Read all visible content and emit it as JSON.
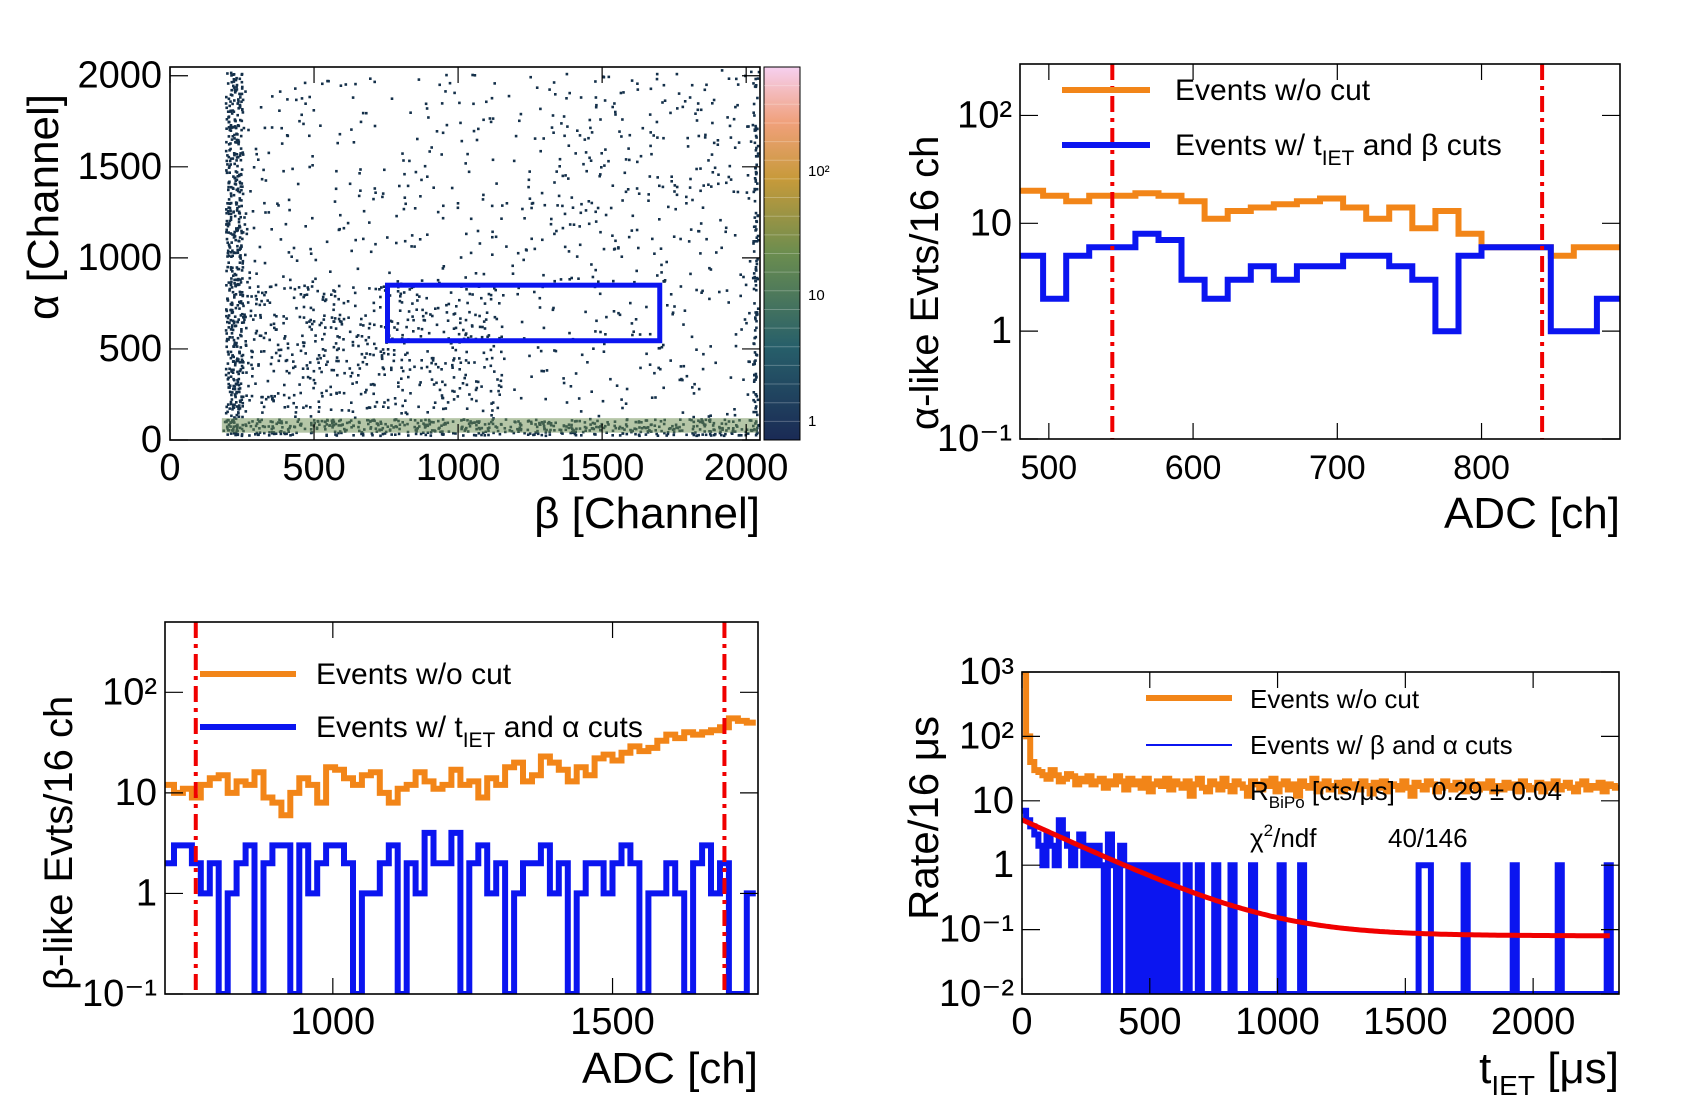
{
  "colors": {
    "orange": "#f28518",
    "blue": "#0b15f0",
    "red": "#f00000",
    "scatter": "#14304a"
  },
  "chart_data": [
    {
      "id": "p1",
      "type": "heatmap",
      "xlabel": "β [Channel]",
      "ylabel": "α [Channel]",
      "xlim": [
        0,
        2048
      ],
      "ylim": [
        0,
        2048
      ],
      "xticks": [
        0,
        500,
        1000,
        1500,
        2000
      ],
      "yticks": [
        0,
        500,
        1000,
        1500,
        2000
      ],
      "colorbar_ticks": [
        "1",
        "10",
        "10²"
      ],
      "selection_box": {
        "x": [
          755,
          1700
        ],
        "y": [
          545,
          850
        ]
      }
    },
    {
      "id": "p2",
      "type": "line",
      "xlabel": "ADC [ch]",
      "ylabel": "α-like Evts/16 ch",
      "xlim": [
        480,
        896
      ],
      "ylim": [
        0.1,
        300
      ],
      "yscale": "log",
      "xticks": [
        500,
        600,
        700,
        800
      ],
      "yticks": [
        0.1,
        1,
        10,
        100
      ],
      "ytick_labels": [
        "10⁻¹",
        "1",
        "10",
        "10²"
      ],
      "cut_lines": [
        544,
        842
      ],
      "legend": [
        {
          "label": "Events w/o cut",
          "color": "#f28518"
        },
        {
          "label_pre": "Events w/ t",
          "label_sub": "IET",
          "label_post": " and β cuts",
          "color": "#0b15f0"
        }
      ],
      "bin_edges": [
        480,
        496,
        512,
        528,
        544,
        560,
        576,
        592,
        608,
        624,
        640,
        656,
        672,
        688,
        704,
        720,
        736,
        752,
        768,
        784,
        800,
        816,
        832,
        848,
        864,
        880,
        896
      ],
      "series": [
        {
          "name": "Events w/o cut",
          "values": [
            20,
            18,
            16,
            18,
            18,
            19,
            18,
            16,
            11,
            13,
            14,
            15,
            16,
            17,
            14,
            11,
            14,
            9,
            13,
            8,
            6,
            6,
            6,
            5,
            6,
            6
          ]
        },
        {
          "name": "Events w/ tIET and β cuts",
          "values": [
            5,
            2,
            5,
            6,
            6,
            8,
            7,
            3,
            2,
            3,
            4,
            3,
            4,
            4,
            5,
            5,
            4,
            3,
            1,
            5,
            6,
            6,
            6,
            1,
            1,
            2
          ]
        }
      ]
    },
    {
      "id": "p3",
      "type": "line",
      "xlabel": "ADC [ch]",
      "ylabel": "β-like Evts/16 ch",
      "xlim": [
        700,
        1760
      ],
      "ylim": [
        0.1,
        500
      ],
      "yscale": "log",
      "xticks": [
        1000,
        1500
      ],
      "yticks": [
        0.1,
        1,
        10,
        100
      ],
      "ytick_labels": [
        "10⁻¹",
        "1",
        "10",
        "10²"
      ],
      "cut_lines": [
        755,
        1700
      ],
      "legend": [
        {
          "label": "Events w/o cut",
          "color": "#f28518"
        },
        {
          "label_pre": "Events w/ t",
          "label_sub": "IET",
          "label_post": " and α cuts",
          "color": "#0b15f0"
        }
      ],
      "bin_edges": [
        700,
        716,
        732,
        748,
        764,
        780,
        796,
        812,
        828,
        844,
        860,
        876,
        892,
        908,
        924,
        940,
        956,
        972,
        988,
        1004,
        1020,
        1036,
        1052,
        1068,
        1084,
        1100,
        1116,
        1132,
        1148,
        1164,
        1180,
        1196,
        1212,
        1228,
        1244,
        1260,
        1276,
        1292,
        1308,
        1324,
        1340,
        1356,
        1372,
        1388,
        1404,
        1420,
        1436,
        1452,
        1468,
        1484,
        1500,
        1516,
        1532,
        1548,
        1564,
        1580,
        1596,
        1612,
        1628,
        1644,
        1660,
        1676,
        1692,
        1708,
        1724,
        1740,
        1756
      ],
      "series": [
        {
          "name": "Events w/o cut",
          "values": [
            12,
            10,
            11,
            9,
            12,
            14,
            15,
            10,
            13,
            12,
            16,
            9,
            8,
            6,
            10,
            14,
            12,
            8,
            18,
            17,
            14,
            12,
            15,
            16,
            10,
            8,
            11,
            12,
            16,
            13,
            11,
            12,
            17,
            12,
            13,
            9,
            14,
            12,
            18,
            20,
            13,
            15,
            23,
            20,
            17,
            13,
            18,
            15,
            22,
            24,
            21,
            25,
            29,
            26,
            28,
            33,
            38,
            35,
            40,
            38,
            40,
            42,
            45,
            55,
            52,
            50
          ]
        },
        {
          "name": "Events w/ tIET and α cuts",
          "values": [
            2,
            3,
            3,
            2,
            1,
            2,
            0.1,
            1,
            2,
            3,
            0.1,
            2,
            3,
            3,
            0.1,
            3,
            1,
            2,
            3,
            3,
            2,
            0.1,
            1,
            1,
            2,
            3,
            0.1,
            2,
            1,
            4,
            2,
            2,
            4,
            0.1,
            2,
            3,
            1,
            2,
            0.1,
            1,
            2,
            2,
            3,
            1,
            2,
            0.1,
            1,
            2,
            2,
            1,
            2,
            3,
            2,
            0.1,
            1,
            1,
            2,
            1,
            0.1,
            2,
            3,
            1,
            2,
            0.1,
            0.1,
            1
          ]
        }
      ]
    },
    {
      "id": "p4",
      "type": "line",
      "xlabel_pre": "t",
      "xlabel_sub": "IET",
      "xlabel_post": " [μs]",
      "ylabel": "Rate/16 μs",
      "xlim": [
        0,
        2336
      ],
      "ylim": [
        0.01,
        1000
      ],
      "yscale": "log",
      "xticks": [
        0,
        500,
        1000,
        1500,
        2000
      ],
      "yticks": [
        0.01,
        0.1,
        1,
        10,
        100,
        1000
      ],
      "ytick_labels": [
        "10⁻²",
        "10⁻¹",
        "1",
        "10",
        "10²",
        "10³"
      ],
      "legend": [
        {
          "label": "Events w/o cut",
          "color": "#f28518"
        },
        {
          "label": "Events w/  β and α cuts",
          "color": "#0b15f0"
        }
      ],
      "fit_box": {
        "row1_pre": "R",
        "row1_sub": "BiPo",
        "row1_post": " [cts/μs]",
        "row1_value": "0.29 ± 0.04",
        "row2_pre": "χ",
        "row2_sup": "2",
        "row2_post": "/ndf",
        "row2_value": "40/146"
      },
      "fit": {
        "A": 5.0,
        "tau": 237,
        "C": 0.08,
        "color": "#f00000"
      },
      "bin_width": 16,
      "series": [
        {
          "name": "Events w/o cut",
          "values": [
            1000,
            100,
            40,
            30,
            28,
            25,
            22,
            30,
            25,
            20,
            22,
            26,
            24,
            18,
            22,
            20,
            24,
            18,
            20,
            22,
            16,
            20,
            18,
            24,
            20,
            15,
            22,
            18,
            20,
            16,
            22,
            14,
            18,
            20,
            17,
            22,
            15,
            20,
            18,
            16,
            20,
            12,
            18,
            22,
            16,
            14,
            20,
            18,
            15,
            22,
            17,
            14,
            20,
            18,
            16,
            12,
            20,
            18,
            15,
            20,
            17,
            22,
            14,
            18,
            20,
            15,
            18,
            12,
            20,
            17,
            16,
            22,
            14,
            18,
            20,
            15,
            17,
            19,
            14,
            20,
            16,
            18,
            15,
            20,
            17,
            13,
            19,
            16,
            20,
            14,
            18,
            17,
            15,
            20,
            16,
            12,
            19,
            17,
            15,
            20,
            18,
            14,
            16,
            20,
            17,
            15,
            19,
            16,
            14,
            20,
            17,
            15,
            18,
            16,
            20,
            14,
            17,
            15,
            19,
            16,
            18,
            14,
            20,
            17,
            15,
            16,
            19,
            14,
            18,
            16,
            20,
            15,
            17,
            19,
            16,
            14,
            18,
            20,
            15,
            17,
            16,
            19,
            14,
            18,
            17,
            16
          ]
        },
        {
          "name": "Events w/  β and α cuts",
          "values": [
            7,
            5,
            4,
            3,
            2,
            1,
            3,
            2,
            1,
            5,
            3,
            2,
            1,
            2,
            3,
            1,
            2,
            1,
            2,
            1,
            0.01,
            3,
            1,
            0.01,
            2,
            1,
            0.01,
            1,
            0.01,
            1,
            0.01,
            1,
            0.01,
            1,
            0.01,
            1,
            0.01,
            1,
            0.01,
            0.01,
            1,
            0.01,
            0.01,
            1,
            0.01,
            0.01,
            0.01,
            1,
            0.01,
            0.01,
            0.01,
            1,
            0.01,
            0.01,
            0.01,
            0.01,
            1,
            0.01,
            0.01,
            0.01,
            0.01,
            0.01,
            0.01,
            1,
            0.01,
            0.01,
            0.01,
            0.01,
            1,
            0.01,
            0.01,
            0.01,
            0.01,
            0.01,
            0.01,
            0.01,
            0.01,
            0.01,
            0.01,
            0.01,
            0.01,
            0.01,
            0.01,
            0.01,
            0.01,
            0.01,
            0.01,
            0.01,
            0.01,
            0.01,
            0.01,
            0.01,
            0.01,
            0.01,
            0.01,
            0.01,
            0.01,
            1,
            1,
            1,
            0.01,
            0.01,
            0.01,
            0.01,
            0.01,
            0.01,
            0.01,
            0.01,
            1,
            0.01,
            0.01,
            0.01,
            0.01,
            0.01,
            0.01,
            0.01,
            0.01,
            0.01,
            0.01,
            0.01,
            1,
            0.01,
            0.01,
            0.01,
            0.01,
            0.01,
            0.01,
            0.01,
            0.01,
            0.01,
            0.01,
            1,
            0.01,
            0.01,
            0.01,
            0.01,
            0.01,
            0.01,
            0.01,
            0.01,
            0.01,
            0.01,
            0.01,
            1,
            0.01,
            0.01
          ]
        }
      ]
    }
  ]
}
